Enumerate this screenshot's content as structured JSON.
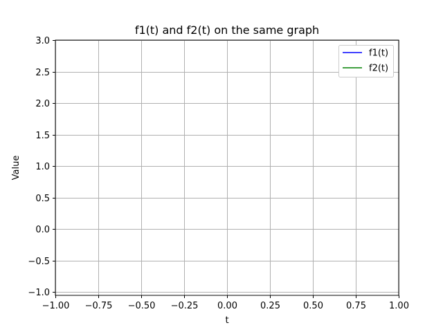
{
  "chart_data": {
    "type": "line",
    "title": "f1(t) and f2(t) on the same graph",
    "xlabel": "t",
    "ylabel": "Value",
    "xlim": [
      -1.0,
      1.0
    ],
    "ylim": [
      -1.05,
      3.0
    ],
    "x_ticks": [
      -1.0,
      -0.75,
      -0.5,
      -0.25,
      0.0,
      0.25,
      0.5,
      0.75,
      1.0
    ],
    "x_tick_labels": [
      "−1.00",
      "−0.75",
      "−0.50",
      "−0.25",
      "0.00",
      "0.25",
      "0.50",
      "0.75",
      "1.00"
    ],
    "y_ticks": [
      -1.0,
      -0.5,
      0.0,
      0.5,
      1.0,
      1.5,
      2.0,
      2.5,
      3.0
    ],
    "y_tick_labels": [
      "−1.0",
      "−0.5",
      "0.0",
      "0.5",
      "1.0",
      "1.5",
      "2.0",
      "2.5",
      "3.0"
    ],
    "grid": true,
    "legend_position": "top-right",
    "series": [
      {
        "name": "f1(t)",
        "color": "#0000ff",
        "x": [],
        "y": []
      },
      {
        "name": "f2(t)",
        "color": "#008000",
        "x": [],
        "y": []
      }
    ]
  }
}
